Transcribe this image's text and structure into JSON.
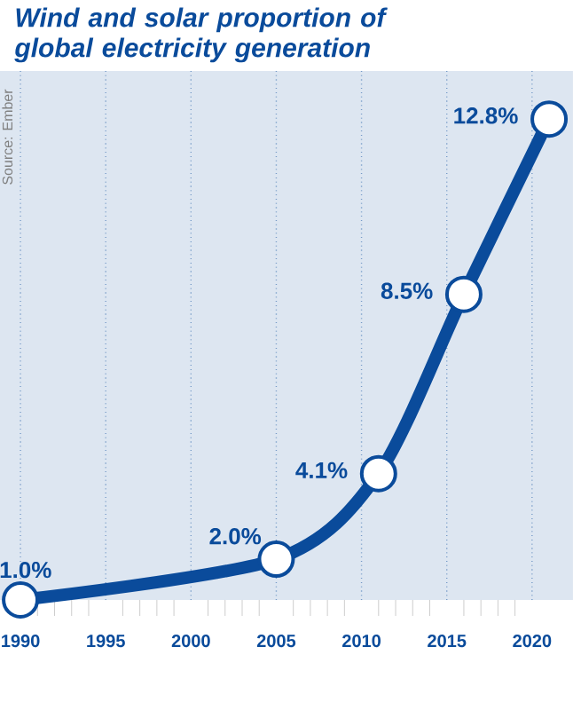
{
  "chart_data": {
    "type": "line",
    "title": "Wind and solar proportion of global electricity generation",
    "annotations": [
      "Source: Ember"
    ],
    "x": [
      1990,
      2005,
      2011,
      2016,
      2021
    ],
    "series": [
      {
        "color": "#0a4b9b",
        "values": [
          1.0,
          2.0,
          4.1,
          8.5,
          12.8
        ],
        "value_labels": [
          "1.0%",
          "2.0%",
          "4.1%",
          "8.5%",
          "12.8%"
        ]
      }
    ],
    "xlim": [
      1988.8,
      2022.4
    ],
    "xticks": [
      1990,
      1995,
      2000,
      2005,
      2010,
      2015,
      2020
    ],
    "tick_labels": "x",
    "grid": "x",
    "marker": "circle",
    "line_style": "solid"
  }
}
